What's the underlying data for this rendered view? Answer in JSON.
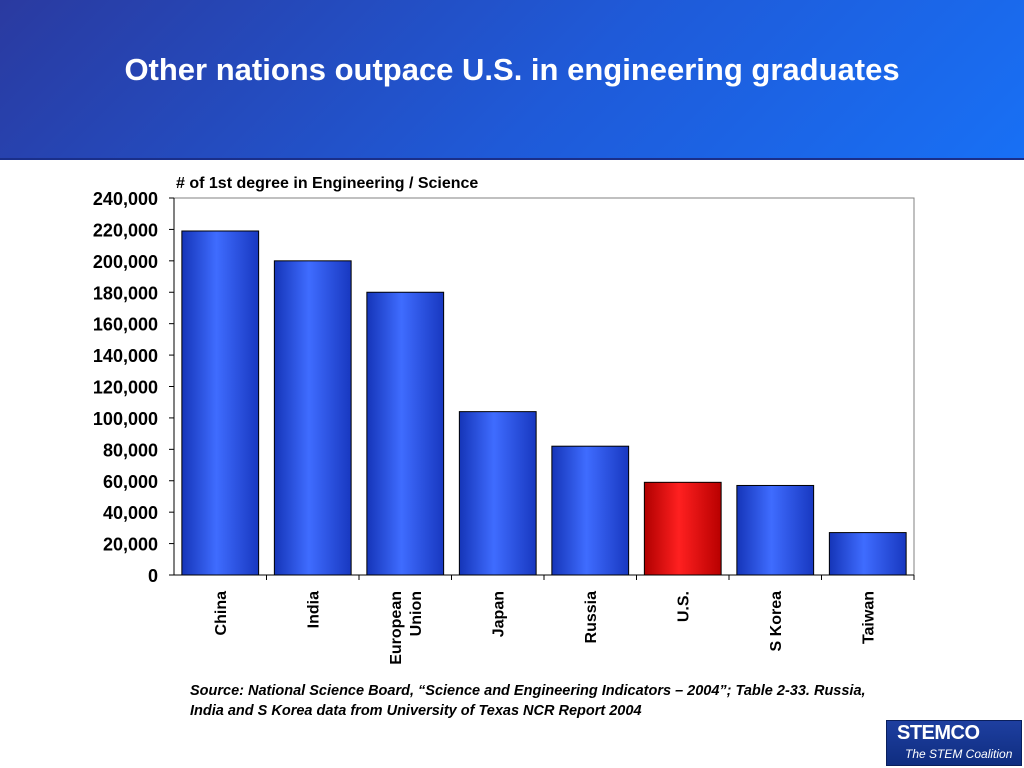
{
  "slide": {
    "title": "Other nations outpace U.S. in engineering graduates",
    "source": "Source: National Science Board, “Science and Engineering Indicators – 2004”; Table 2-33. Russia, India and S Korea data from University of Texas NCR Report 2004",
    "logo": {
      "name": "STEMCO",
      "tagline": "The STEM Coalition"
    }
  },
  "chart_data": {
    "type": "bar",
    "title": "# of 1st degree in Engineering / Science",
    "categories": [
      [
        "China"
      ],
      [
        "India"
      ],
      [
        "European",
        "Union"
      ],
      [
        "Japan"
      ],
      [
        "Russia"
      ],
      [
        "U.S."
      ],
      [
        "S Korea"
      ],
      [
        "Taiwan"
      ]
    ],
    "values": [
      219000,
      200000,
      180000,
      104000,
      82000,
      59000,
      57000,
      27000
    ],
    "highlight_index": 5,
    "colors": {
      "bar": "#2a52e8",
      "highlight": "#e81010",
      "border": "#000000"
    },
    "ylim": [
      0,
      240000
    ],
    "yticks": [
      "0",
      "20,000",
      "40,000",
      "60,000",
      "80,000",
      "100,000",
      "120,000",
      "140,000",
      "160,000",
      "180,000",
      "200,000",
      "220,000",
      "240,000"
    ],
    "grid": false,
    "legend": "none"
  }
}
